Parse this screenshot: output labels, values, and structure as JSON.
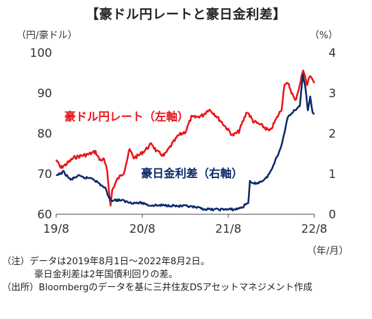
{
  "title": "【豪ドル円レートと豪日金利差】",
  "chart_data": {
    "type": "line",
    "left_axis": {
      "unit_label": "（円/豪ドル）",
      "ylim": [
        60,
        100
      ],
      "ticks": [
        60,
        70,
        80,
        90,
        100
      ]
    },
    "right_axis": {
      "unit_label": "（%）",
      "ylim": [
        0,
        4
      ],
      "ticks": [
        0,
        1,
        2,
        3,
        4
      ]
    },
    "x_axis": {
      "ticks": [
        "19/8",
        "20/8",
        "21/8",
        "22/8"
      ],
      "tick_dates": [
        "2019-08-01",
        "2020-08-01",
        "2021-08-01",
        "2022-08-01"
      ],
      "unit_label": "（年/月）",
      "range": [
        "2019-08-01",
        "2022-08-02"
      ]
    },
    "series": [
      {
        "name": "豪ドル円レート（左軸）",
        "axis": "left",
        "color": "#e8161b",
        "points": [
          [
            "2019-08-01",
            73.5
          ],
          [
            "2019-08-20",
            71.5
          ],
          [
            "2019-09-15",
            72.5
          ],
          [
            "2019-10-15",
            74.0
          ],
          [
            "2019-11-15",
            74.5
          ],
          [
            "2019-12-15",
            74.8
          ],
          [
            "2020-01-15",
            75.5
          ],
          [
            "2020-02-01",
            73.5
          ],
          [
            "2020-02-20",
            73.5
          ],
          [
            "2020-03-05",
            70.5
          ],
          [
            "2020-03-12",
            66.0
          ],
          [
            "2020-03-19",
            62.0
          ],
          [
            "2020-03-26",
            66.0
          ],
          [
            "2020-04-15",
            68.5
          ],
          [
            "2020-05-15",
            70.5
          ],
          [
            "2020-06-08",
            76.0
          ],
          [
            "2020-06-25",
            74.0
          ],
          [
            "2020-07-15",
            74.5
          ],
          [
            "2020-08-15",
            76.0
          ],
          [
            "2020-09-10",
            77.5
          ],
          [
            "2020-10-01",
            75.5
          ],
          [
            "2020-11-01",
            74.5
          ],
          [
            "2020-12-01",
            77.0
          ],
          [
            "2021-01-01",
            79.5
          ],
          [
            "2021-02-01",
            80.5
          ],
          [
            "2021-02-25",
            84.0
          ],
          [
            "2021-03-15",
            84.0
          ],
          [
            "2021-04-15",
            84.5
          ],
          [
            "2021-05-10",
            86.0
          ],
          [
            "2021-06-01",
            85.0
          ],
          [
            "2021-07-01",
            83.0
          ],
          [
            "2021-08-20",
            79.5
          ],
          [
            "2021-09-15",
            80.5
          ],
          [
            "2021-10-20",
            85.5
          ],
          [
            "2021-11-15",
            83.0
          ],
          [
            "2021-12-20",
            82.0
          ],
          [
            "2022-01-25",
            80.5
          ],
          [
            "2022-02-20",
            83.5
          ],
          [
            "2022-03-15",
            86.0
          ],
          [
            "2022-03-28",
            92.5
          ],
          [
            "2022-04-15",
            92.0
          ],
          [
            "2022-05-12",
            88.0
          ],
          [
            "2022-06-01",
            92.0
          ],
          [
            "2022-06-15",
            96.0
          ],
          [
            "2022-07-01",
            92.0
          ],
          [
            "2022-07-15",
            94.5
          ],
          [
            "2022-08-02",
            92.5
          ]
        ]
      },
      {
        "name": "豪日金利差（右軸）",
        "axis": "right",
        "color": "#0c2a6a",
        "points": [
          [
            "2019-08-01",
            0.95
          ],
          [
            "2019-09-01",
            1.05
          ],
          [
            "2019-10-01",
            0.85
          ],
          [
            "2019-11-01",
            0.95
          ],
          [
            "2019-12-01",
            0.9
          ],
          [
            "2020-01-01",
            0.9
          ],
          [
            "2020-02-01",
            0.75
          ],
          [
            "2020-02-25",
            0.65
          ],
          [
            "2020-03-10",
            0.45
          ],
          [
            "2020-03-20",
            0.35
          ],
          [
            "2020-04-01",
            0.35
          ],
          [
            "2020-05-01",
            0.35
          ],
          [
            "2020-06-01",
            0.3
          ],
          [
            "2020-07-01",
            0.28
          ],
          [
            "2020-08-01",
            0.28
          ],
          [
            "2020-09-01",
            0.22
          ],
          [
            "2020-10-01",
            0.22
          ],
          [
            "2020-11-01",
            0.22
          ],
          [
            "2020-12-01",
            0.22
          ],
          [
            "2021-01-01",
            0.2
          ],
          [
            "2021-02-01",
            0.2
          ],
          [
            "2021-03-01",
            0.18
          ],
          [
            "2021-04-01",
            0.15
          ],
          [
            "2021-05-01",
            0.12
          ],
          [
            "2021-06-01",
            0.12
          ],
          [
            "2021-07-01",
            0.12
          ],
          [
            "2021-08-01",
            0.12
          ],
          [
            "2021-09-01",
            0.12
          ],
          [
            "2021-10-01",
            0.18
          ],
          [
            "2021-10-25",
            0.3
          ],
          [
            "2021-11-01",
            0.8
          ],
          [
            "2021-11-15",
            0.75
          ],
          [
            "2021-12-15",
            0.8
          ],
          [
            "2022-01-10",
            0.9
          ],
          [
            "2022-02-01",
            1.1
          ],
          [
            "2022-02-20",
            1.4
          ],
          [
            "2022-03-10",
            1.6
          ],
          [
            "2022-03-25",
            1.95
          ],
          [
            "2022-04-10",
            2.4
          ],
          [
            "2022-04-25",
            2.5
          ],
          [
            "2022-05-15",
            2.6
          ],
          [
            "2022-06-01",
            2.7
          ],
          [
            "2022-06-14",
            3.45
          ],
          [
            "2022-06-25",
            3.1
          ],
          [
            "2022-07-05",
            2.6
          ],
          [
            "2022-07-15",
            2.9
          ],
          [
            "2022-07-25",
            2.5
          ],
          [
            "2022-08-02",
            2.5
          ]
        ]
      }
    ],
    "annotations": [
      {
        "text": "豪ドル円レート（左軸）",
        "color": "#e8161b"
      },
      {
        "text": "豪日金利差（右軸）",
        "color": "#0c2a6a"
      }
    ]
  },
  "notes": [
    "（注）データは2019年8月1日～2022年8月2日。",
    "豪日金利差は2年国債利回りの差。",
    "（出所）Bloombergのデータを基に三井住友DSアセットマネジメント作成"
  ]
}
